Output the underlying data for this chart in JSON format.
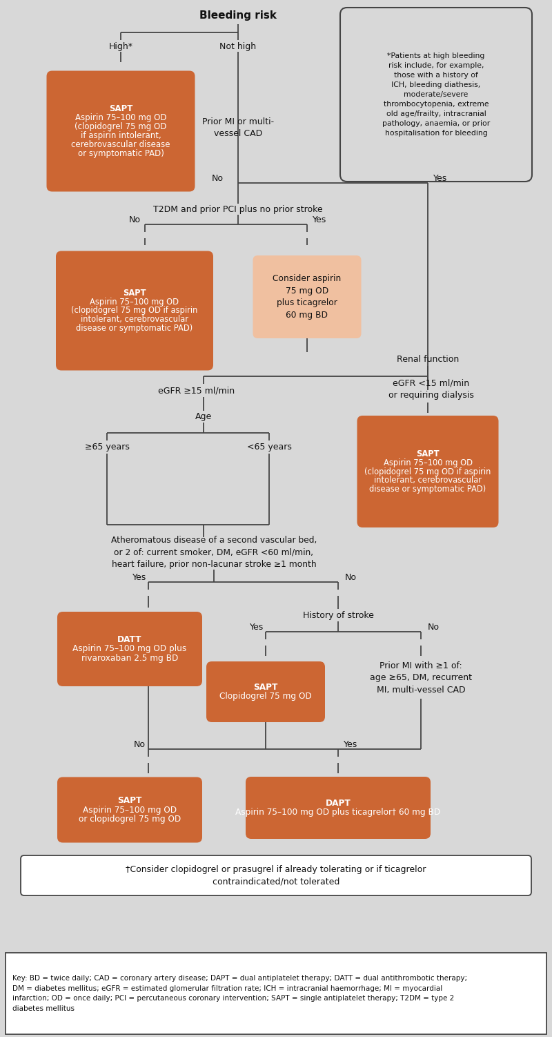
{
  "bg": "#d8d8d8",
  "od": "#cc6633",
  "ol": "#f0c0a0",
  "lc": "#444444",
  "black": "#111111",
  "white": "#ffffff",
  "fn_text": "*Patients at high bleeding\nrisk include, for example,\nthose with a history of\nICH, bleeding diathesis,\nmoderate/severe\nthrombocytopenia, extreme\nold age/frailty, intracranial\npathology, anaemia, or prior\nhospitalisation for bleeding",
  "key": "Key: BD = twice daily; CAD = coronary artery disease; DAPT = dual antiplatelet therapy; DATT = dual antithrombotic therapy;\nDM = diabetes mellitus; eGFR = estimated glomerular filtration rate; ICH = intracranial haemorrhage; MI = myocardial\ninfarction; OD = once daily; PCI = percutaneous coronary intervention; SAPT = single antiplatelet therapy; T2DM = type 2\ndiabetes mellitus",
  "cfn": "†Consider clopidogrel or prasugrel if already tolerating or if ticagrelor\ncontraindicated/not tolerated",
  "title": "Bleeding risk",
  "high": "High*",
  "not_high": "Not high",
  "sapt1_title": "SAPT",
  "sapt1_body": "Aspirin 75–100 mg OD\n(clopidogrel 75 mg OD\nif aspirin intolerant,\ncerebrovascular disease\nor symptomatic PAD)",
  "prior_mi_text": "Prior MI or multi-\nvessel CAD",
  "no_label": "No",
  "yes_label": "Yes",
  "t2dm_text": "T2DM and prior PCI plus no prior stroke",
  "sapt2_title": "SAPT",
  "sapt2_body": "Aspirin 75–100 mg OD\n(clopidogrel 75 mg OD if aspirin\nintolerant, cerebrovascular\ndisease or symptomatic PAD)",
  "consider_title": "Consider aspirin\n75 mg OD\nplus ticagrelor\n60 mg BD",
  "renal_text": "Renal function",
  "egfr_high": "eGFR ≥15 ml/min",
  "egfr_low": "eGFR <15 ml/min\nor requiring dialysis",
  "sapt3_title": "SAPT",
  "sapt3_body": "Aspirin 75–100 mg OD\n(clopidogrel 75 mg OD if aspirin\nintolerant, cerebrovascular\ndisease or symptomatic PAD)",
  "age_text": "Age",
  "age_old": "≥65 years",
  "age_young": "<65 years",
  "athero_text": "Atheromatous disease of a second vascular bed,\nor 2 of: current smoker, DM, eGFR <60 ml/min,\nheart failure, prior non-lacunar stroke ≥1 month",
  "datt_title": "DATT",
  "datt_body": "Aspirin 75–100 mg OD plus\nrivaroxaban 2.5 mg BD",
  "stroke_text": "History of stroke",
  "sapt4_title": "SAPT",
  "sapt4_body": "Clopidogrel 75 mg OD",
  "prior_mi2_text": "Prior MI with ≥1 of:\nage ≥65, DM, recurrent\nMI, multi-vessel CAD",
  "sapt5_title": "SAPT",
  "sapt5_body": "Aspirin 75–100 mg OD\nor clopidogrel 75 mg OD",
  "dapt_title": "DAPT",
  "dapt_body": "Aspirin 75–100 mg OD plus ticagrelor† 60 mg BD"
}
